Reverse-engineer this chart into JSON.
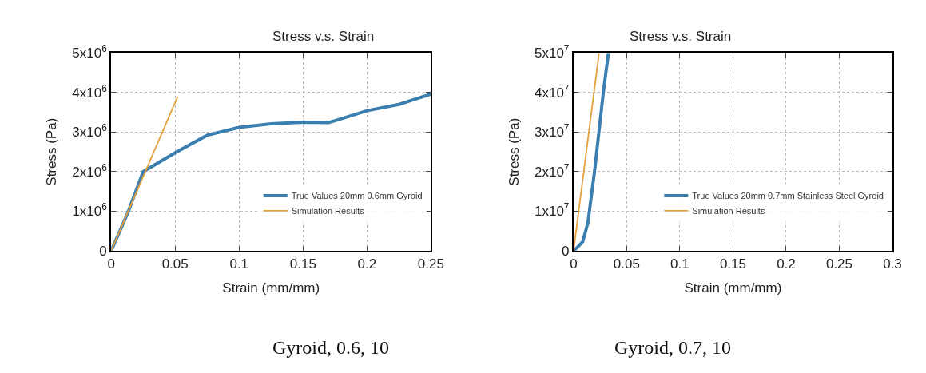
{
  "chart_data": [
    {
      "type": "line",
      "title": "Stress v.s. Strain",
      "xlabel": "Strain (mm/mm)",
      "ylabel": "Stress (Pa)",
      "xlim": [
        0,
        0.25
      ],
      "xticks": [
        0,
        0.05,
        0.1,
        0.15,
        0.2,
        0.25
      ],
      "ylim": [
        0,
        5000000
      ],
      "yticks": [
        0,
        {
          "value": 1000000,
          "label": "1x10$^{6}$"
        },
        {
          "value": 2000000,
          "label": "2x10$^{6}$"
        },
        {
          "value": 3000000,
          "label": "3x10$^{6}$"
        },
        {
          "value": 4000000,
          "label": "4x10$^{6}$"
        },
        {
          "value": 5000000,
          "label": "5x10$^{6}$"
        }
      ],
      "grid": true,
      "legend": "bottom right",
      "line_style": "solid",
      "series": [
        {
          "name": "True Values 20mm 0.6mm Gyroid",
          "color": "#3a7fb0",
          "x": [
            0,
            0.013,
            0.025,
            0.05,
            0.075,
            0.1,
            0.125,
            0.15,
            0.17,
            0.175,
            0.2,
            0.225,
            0.25
          ],
          "values": [
            0,
            960000,
            2000000,
            2480000,
            2920000,
            3120000,
            3210000,
            3250000,
            3240000,
            3290000,
            3540000,
            3700000,
            3960000
          ]
        },
        {
          "name": "Simulation Results",
          "color": "#e5a03a",
          "x": [
            0,
            0.052
          ],
          "values": [
            0,
            3900000
          ]
        }
      ],
      "annotations": [
        "Gyroid, 0.6, 10"
      ]
    },
    {
      "type": "line",
      "title": "Stress v.s. Strain",
      "xlabel": "Strain (mm/mm)",
      "ylabel": "Stress (Pa)",
      "xlim": [
        0,
        0.3
      ],
      "xticks": [
        0,
        0.05,
        0.1,
        0.15,
        0.2,
        0.25,
        0.3
      ],
      "ylim": [
        0,
        50000000
      ],
      "yticks": [
        0,
        {
          "value": 10000000,
          "label": "1x10$^{7}$"
        },
        {
          "value": 20000000,
          "label": "2x10$^{7}$"
        },
        {
          "value": 30000000,
          "label": "3x10$^{7}$"
        },
        {
          "value": 40000000,
          "label": "4x10$^{7}$"
        },
        {
          "value": 50000000,
          "label": "5x10$^{7}$"
        }
      ],
      "grid": true,
      "legend": "bottom right",
      "line_style": "solid",
      "series": [
        {
          "name": "True Values 20mm 0.7mm Stainless Steel Gyroid",
          "color": "#3a7fb0",
          "x": [
            0,
            0.004,
            0.0086,
            0.0135,
            0.0197,
            0.028,
            0.0328
          ],
          "values": [
            0,
            1000000,
            2300000,
            7100000,
            20000000,
            40000000,
            50000000
          ]
        },
        {
          "name": "Simulation Results",
          "color": "#e5a03a",
          "x": [
            0,
            0.024
          ],
          "values": [
            0,
            50000000
          ]
        }
      ],
      "annotations": [
        "Gyroid, 0.7, 10"
      ]
    }
  ]
}
